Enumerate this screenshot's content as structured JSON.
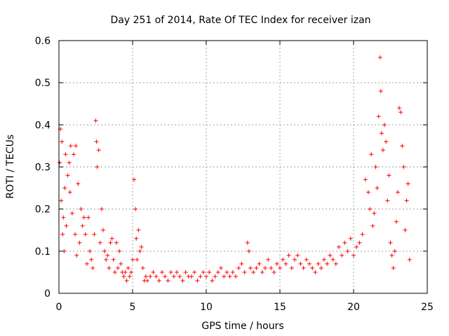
{
  "chart_data": {
    "type": "scatter",
    "title": "Day 251 of 2014, Rate Of TEC Index for receiver izan",
    "xlabel": "GPS time / hours",
    "ylabel": "ROTI / TECUs",
    "xlim": [
      0,
      25
    ],
    "ylim": [
      0,
      0.6
    ],
    "xticks": [
      0,
      5,
      10,
      15,
      20,
      25
    ],
    "yticks": [
      0,
      0.1,
      0.2,
      0.3,
      0.4,
      0.5,
      0.6
    ],
    "xtick_labels": [
      "0",
      "5",
      "10",
      "15",
      "20",
      "25"
    ],
    "ytick_labels": [
      "0",
      "0.1",
      "0.2",
      "0.3",
      "0.4",
      "0.5",
      "0.6"
    ],
    "grid": true,
    "marker": "+",
    "color": "#ff0000",
    "series": [
      {
        "name": "ROTI",
        "x": [
          0.05,
          0.1,
          0.15,
          0.2,
          0.25,
          0.3,
          0.35,
          0.4,
          0.45,
          0.5,
          0.6,
          0.7,
          0.75,
          0.8,
          0.9,
          1.0,
          1.1,
          1.15,
          1.2,
          1.3,
          1.4,
          1.5,
          1.6,
          1.7,
          1.8,
          1.9,
          2.0,
          2.1,
          2.2,
          2.3,
          2.4,
          2.5,
          2.55,
          2.6,
          2.7,
          2.8,
          2.9,
          3.0,
          3.1,
          3.2,
          3.3,
          3.4,
          3.5,
          3.6,
          3.7,
          3.8,
          3.9,
          4.0,
          4.1,
          4.2,
          4.3,
          4.4,
          4.5,
          4.6,
          4.7,
          4.8,
          4.9,
          5.0,
          5.1,
          5.2,
          5.25,
          5.3,
          5.4,
          5.5,
          5.6,
          5.7,
          5.8,
          5.9,
          6.0,
          6.2,
          6.4,
          6.6,
          6.8,
          7.0,
          7.2,
          7.4,
          7.6,
          7.8,
          8.0,
          8.2,
          8.4,
          8.6,
          8.8,
          9.0,
          9.2,
          9.4,
          9.6,
          9.8,
          10.0,
          10.2,
          10.4,
          10.6,
          10.8,
          11.0,
          11.2,
          11.4,
          11.6,
          11.8,
          12.0,
          12.2,
          12.4,
          12.6,
          12.8,
          12.9,
          13.0,
          13.2,
          13.4,
          13.6,
          13.8,
          14.0,
          14.2,
          14.4,
          14.6,
          14.8,
          15.0,
          15.2,
          15.4,
          15.6,
          15.8,
          16.0,
          16.2,
          16.4,
          16.6,
          16.8,
          17.0,
          17.2,
          17.4,
          17.6,
          17.8,
          18.0,
          18.2,
          18.4,
          18.6,
          18.8,
          19.0,
          19.2,
          19.4,
          19.6,
          19.8,
          20.0,
          20.2,
          20.4,
          20.6,
          20.8,
          21.0,
          21.1,
          21.2,
          21.3,
          21.4,
          21.5,
          21.6,
          21.7,
          21.8,
          21.85,
          21.9,
          22.0,
          22.1,
          22.2,
          22.3,
          22.4,
          22.5,
          22.6,
          22.7,
          22.8,
          22.9,
          23.0,
          23.1,
          23.2,
          23.3,
          23.4,
          23.5,
          23.6,
          23.7,
          23.8
        ],
        "y": [
          0.31,
          0.39,
          0.22,
          0.36,
          0.14,
          0.18,
          0.1,
          0.25,
          0.33,
          0.16,
          0.28,
          0.31,
          0.24,
          0.35,
          0.19,
          0.33,
          0.14,
          0.35,
          0.09,
          0.26,
          0.12,
          0.2,
          0.16,
          0.18,
          0.14,
          0.07,
          0.18,
          0.1,
          0.08,
          0.06,
          0.14,
          0.41,
          0.36,
          0.3,
          0.34,
          0.12,
          0.2,
          0.15,
          0.1,
          0.08,
          0.09,
          0.06,
          0.12,
          0.13,
          0.08,
          0.05,
          0.12,
          0.06,
          0.1,
          0.07,
          0.05,
          0.04,
          0.05,
          0.03,
          0.06,
          0.04,
          0.05,
          0.08,
          0.27,
          0.2,
          0.13,
          0.08,
          0.15,
          0.1,
          0.11,
          0.06,
          0.03,
          0.04,
          0.03,
          0.04,
          0.05,
          0.04,
          0.03,
          0.05,
          0.04,
          0.03,
          0.05,
          0.04,
          0.05,
          0.04,
          0.03,
          0.05,
          0.04,
          0.04,
          0.05,
          0.03,
          0.04,
          0.05,
          0.04,
          0.05,
          0.03,
          0.04,
          0.05,
          0.06,
          0.04,
          0.05,
          0.04,
          0.05,
          0.04,
          0.06,
          0.07,
          0.05,
          0.12,
          0.1,
          0.06,
          0.05,
          0.06,
          0.07,
          0.05,
          0.06,
          0.08,
          0.06,
          0.05,
          0.07,
          0.06,
          0.08,
          0.07,
          0.09,
          0.06,
          0.08,
          0.09,
          0.07,
          0.06,
          0.08,
          0.07,
          0.06,
          0.05,
          0.07,
          0.06,
          0.08,
          0.07,
          0.09,
          0.08,
          0.07,
          0.11,
          0.09,
          0.12,
          0.1,
          0.13,
          0.09,
          0.11,
          0.12,
          0.14,
          0.27,
          0.24,
          0.2,
          0.33,
          0.16,
          0.19,
          0.3,
          0.25,
          0.42,
          0.56,
          0.48,
          0.38,
          0.34,
          0.4,
          0.36,
          0.22,
          0.28,
          0.12,
          0.09,
          0.06,
          0.1,
          0.17,
          0.24,
          0.44,
          0.43,
          0.35,
          0.3,
          0.15,
          0.22,
          0.26,
          0.08
        ]
      }
    ]
  }
}
